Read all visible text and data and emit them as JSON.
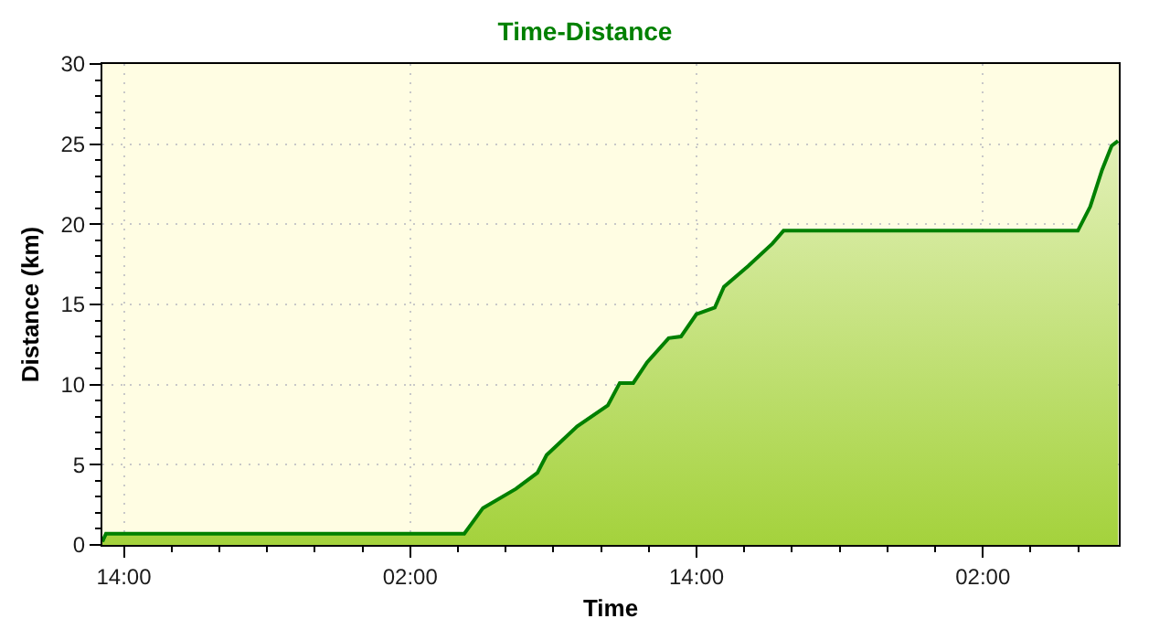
{
  "chart_data": {
    "type": "area",
    "title": "Time-Distance",
    "xlabel": "Time",
    "ylabel": "Distance (km)",
    "x": [
      "2000-01-01T13:06",
      "2000-01-01T13:15",
      "2000-01-02T04:16",
      "2000-01-02T05:03",
      "2000-01-02T06:26",
      "2000-01-02T07:20",
      "2000-01-02T07:43",
      "2000-01-02T09:00",
      "2000-01-02T10:17",
      "2000-01-02T10:47",
      "2000-01-02T11:21",
      "2000-01-02T11:56",
      "2000-01-02T12:50",
      "2000-01-02T13:21",
      "2000-01-02T14:00",
      "2000-01-02T14:46",
      "2000-01-02T15:09",
      "2000-01-02T16:10",
      "2000-01-02T17:11",
      "2000-01-02T17:39",
      "2000-01-03T05:59",
      "2000-01-03T06:30",
      "2000-01-03T07:00",
      "2000-01-03T07:24",
      "2000-01-03T07:40"
    ],
    "series": [
      {
        "color": "#008000",
        "values": [
          0.2,
          0.7,
          0.7,
          2.3,
          3.5,
          4.5,
          5.6,
          7.4,
          8.7,
          10.1,
          10.1,
          11.4,
          12.9,
          13.0,
          14.4,
          14.8,
          16.1,
          17.4,
          18.8,
          19.6,
          19.6,
          21.1,
          23.4,
          24.9,
          25.2
        ]
      }
    ],
    "xlim": [
      "2000-01-01T13:06",
      "2000-01-03T07:42"
    ],
    "xticks": [
      {
        "value": "2000-01-01T14:00",
        "label": "14:00"
      },
      {
        "value": "2000-01-02T02:00",
        "label": "02:00"
      },
      {
        "value": "2000-01-02T14:00",
        "label": "14:00"
      },
      {
        "value": "2000-01-03T02:00",
        "label": "02:00"
      }
    ],
    "ylim": [
      0,
      30
    ],
    "yticks": [
      0,
      5,
      10,
      15,
      20,
      25,
      30
    ],
    "grid": true,
    "marker": "none",
    "line_style": "solid"
  }
}
